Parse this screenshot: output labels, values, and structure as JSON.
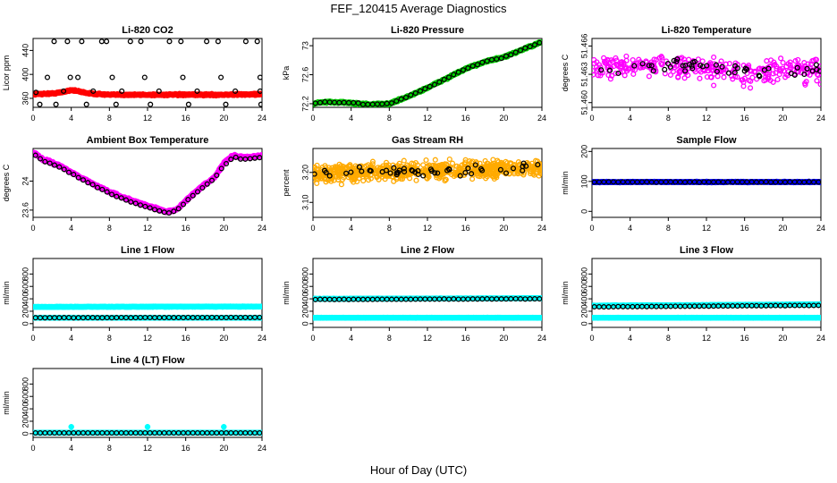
{
  "figure": {
    "title": "FEF_120415  Average Diagnostics",
    "xlabel": "Hour of Day (UTC)"
  },
  "chart_data": [
    {
      "type": "scatter",
      "title": "Li-820 CO2",
      "ylabel": "Licor ppm",
      "xlim": [
        0,
        24
      ],
      "ylim": [
        345,
        460
      ],
      "xticks": [
        0,
        4,
        8,
        12,
        16,
        20,
        24
      ],
      "yticks": [
        360,
        400,
        440
      ],
      "series": [
        {
          "color": "#ff0000",
          "marker": "filled",
          "band": [
            [
              0,
              367
            ],
            [
              2,
              368
            ],
            [
              3,
              370
            ],
            [
              4,
              374
            ],
            [
              5,
              371
            ],
            [
              6,
              368
            ],
            [
              8,
              366
            ],
            [
              12,
              366
            ],
            [
              16,
              366
            ],
            [
              20,
              366
            ],
            [
              24,
              367
            ]
          ],
          "spread": 2
        },
        {
          "color": "#000000",
          "marker": "open",
          "points": [
            [
              0.3,
              370
            ],
            [
              0.7,
              350
            ],
            [
              2.2,
              455
            ],
            [
              2.4,
              350
            ],
            [
              1.5,
              395
            ],
            [
              3.6,
              455
            ],
            [
              3.9,
              395
            ],
            [
              3.2,
              372
            ],
            [
              4.7,
              395
            ],
            [
              5.1,
              455
            ],
            [
              5.6,
              350
            ],
            [
              6.3,
              372
            ],
            [
              7.2,
              455
            ],
            [
              7.7,
              455
            ],
            [
              8.3,
              395
            ],
            [
              8.7,
              350
            ],
            [
              9.3,
              372
            ],
            [
              10.2,
              455
            ],
            [
              11.3,
              455
            ],
            [
              11.7,
              395
            ],
            [
              12.3,
              350
            ],
            [
              13.2,
              372
            ],
            [
              14.3,
              455
            ],
            [
              15.5,
              455
            ],
            [
              15.7,
              395
            ],
            [
              16.3,
              350
            ],
            [
              17.2,
              372
            ],
            [
              18.2,
              455
            ],
            [
              19.4,
              455
            ],
            [
              19.7,
              395
            ],
            [
              20.2,
              350
            ],
            [
              21.2,
              372
            ],
            [
              22.3,
              455
            ],
            [
              23.5,
              455
            ],
            [
              23.8,
              395
            ],
            [
              23.9,
              350
            ],
            [
              23.8,
              372
            ]
          ]
        }
      ]
    },
    {
      "type": "scatter",
      "title": "Li-820 Pressure",
      "ylabel": "kPa",
      "xlim": [
        0,
        24
      ],
      "ylim": [
        72.15,
        73.1
      ],
      "xticks": [
        0,
        4,
        8,
        12,
        16,
        20,
        24
      ],
      "yticks": [
        72.2,
        72.6,
        73.0
      ],
      "series": [
        {
          "color": "#00cc00",
          "marker": "filled",
          "band": [
            [
              0,
              72.2
            ],
            [
              1,
              72.22
            ],
            [
              3,
              72.22
            ],
            [
              6,
              72.19
            ],
            [
              8,
              72.2
            ],
            [
              10,
              72.3
            ],
            [
              12,
              72.42
            ],
            [
              14,
              72.55
            ],
            [
              16,
              72.68
            ],
            [
              18,
              72.78
            ],
            [
              20,
              72.84
            ],
            [
              22,
              72.95
            ],
            [
              24,
              73.05
            ]
          ],
          "spread": 0.02
        },
        {
          "color": "#000000",
          "marker": "open",
          "curve": [
            [
              0,
              72.2
            ],
            [
              1,
              72.22
            ],
            [
              3,
              72.22
            ],
            [
              6,
              72.19
            ],
            [
              8,
              72.2
            ],
            [
              10,
              72.3
            ],
            [
              12,
              72.42
            ],
            [
              14,
              72.55
            ],
            [
              16,
              72.68
            ],
            [
              18,
              72.78
            ],
            [
              20,
              72.84
            ],
            [
              22,
              72.95
            ],
            [
              24,
              73.05
            ]
          ],
          "n": 48,
          "jitter": 0.012
        }
      ]
    },
    {
      "type": "scatter",
      "title": "Li-820 Temperature",
      "ylabel": "degrees C",
      "xlim": [
        0,
        24
      ],
      "ylim": [
        51.4595,
        51.4668
      ],
      "xticks": [
        0,
        4,
        8,
        12,
        16,
        20,
        24
      ],
      "yticks": [
        51.46,
        51.463,
        51.466
      ],
      "yticklabels": [
        "51.460",
        "51.463",
        "51.466"
      ],
      "series": [
        {
          "color": "#ff00ff",
          "marker": "open",
          "noise": {
            "n": 330,
            "center": 51.4635,
            "spread": 0.0022,
            "trend": [
              [
                0,
                0
              ],
              [
                6,
                0.0006
              ],
              [
                12,
                0.0002
              ],
              [
                18,
                -0.0003
              ],
              [
                24,
                0
              ]
            ]
          }
        },
        {
          "color": "#000000",
          "marker": "open",
          "noise": {
            "n": 48,
            "center": 51.4635,
            "spread": 0.0011,
            "trend": [
              [
                0,
                0
              ],
              [
                6,
                0.0006
              ],
              [
                12,
                0.0002
              ],
              [
                18,
                -0.0003
              ],
              [
                24,
                0
              ]
            ]
          }
        }
      ]
    },
    {
      "type": "scatter",
      "title": "Ambient Box Temperature",
      "ylabel": "degrees C",
      "xlim": [
        0,
        24
      ],
      "ylim": [
        23.5,
        24.45
      ],
      "xticks": [
        0,
        4,
        8,
        12,
        16,
        20,
        24
      ],
      "yticks": [
        23.6,
        24.0
      ],
      "series": [
        {
          "color": "#ff00ff",
          "marker": "filled",
          "band": [
            [
              0,
              24.4
            ],
            [
              1,
              24.3
            ],
            [
              3,
              24.2
            ],
            [
              5,
              24.05
            ],
            [
              8,
              23.85
            ],
            [
              11,
              23.7
            ],
            [
              14,
              23.58
            ],
            [
              15,
              23.6
            ],
            [
              17,
              23.85
            ],
            [
              19,
              24.05
            ],
            [
              20,
              24.25
            ],
            [
              21,
              24.35
            ],
            [
              22,
              24.33
            ],
            [
              24,
              24.35
            ]
          ],
          "spread": 0.025
        },
        {
          "color": "#000000",
          "marker": "open",
          "curve": [
            [
              0,
              24.38
            ],
            [
              1,
              24.28
            ],
            [
              3,
              24.18
            ],
            [
              5,
              24.03
            ],
            [
              8,
              23.83
            ],
            [
              11,
              23.68
            ],
            [
              14,
              23.56
            ],
            [
              15,
              23.59
            ],
            [
              17,
              23.83
            ],
            [
              19,
              24.03
            ],
            [
              20,
              24.22
            ],
            [
              21,
              24.33
            ],
            [
              22,
              24.3
            ],
            [
              24,
              24.33
            ]
          ],
          "n": 48,
          "jitter": 0.01
        }
      ]
    },
    {
      "type": "scatter",
      "title": "Gas Stream RH",
      "ylabel": "percent",
      "xlim": [
        0,
        24
      ],
      "ylim": [
        3.05,
        3.28
      ],
      "xticks": [
        0,
        4,
        8,
        12,
        16,
        20,
        24
      ],
      "yticks": [
        3.1,
        3.2
      ],
      "yticklabels": [
        "3.10",
        "3.20"
      ],
      "series": [
        {
          "color": "#ffaa00",
          "marker": "open",
          "noise": {
            "n": 700,
            "center": 3.205,
            "spread": 0.045,
            "trend": [
              [
                0,
                -0.01
              ],
              [
                24,
                0.01
              ]
            ]
          }
        },
        {
          "color": "#000000",
          "marker": "open",
          "noise": {
            "n": 48,
            "center": 3.205,
            "spread": 0.03,
            "trend": [
              [
                0,
                -0.01
              ],
              [
                24,
                0.01
              ]
            ]
          }
        }
      ]
    },
    {
      "type": "scatter",
      "title": "Sample Flow",
      "ylabel": "ml/min",
      "xlim": [
        0,
        24
      ],
      "ylim": [
        -20,
        210
      ],
      "xticks": [
        0,
        4,
        8,
        12,
        16,
        20,
        24
      ],
      "yticks": [
        0,
        100,
        200
      ],
      "series": [
        {
          "color": "#0000ff",
          "marker": "filled",
          "band": [
            [
              0,
              98
            ],
            [
              24,
              98
            ]
          ],
          "spread": 2
        },
        {
          "color": "#000000",
          "marker": "open",
          "curve": [
            [
              0,
              98
            ],
            [
              24,
              98
            ]
          ],
          "n": 48,
          "jitter": 1
        }
      ]
    },
    {
      "type": "scatter",
      "title": "Line 1 Flow",
      "ylabel": "ml/min",
      "xlim": [
        0,
        24
      ],
      "ylim": [
        -60,
        1050
      ],
      "xticks": [
        0,
        4,
        8,
        12,
        16,
        20,
        24
      ],
      "yticks": [
        0,
        200,
        400,
        600,
        800
      ],
      "series": [
        {
          "color": "#00ffff",
          "marker": "filled",
          "band": [
            [
              0,
              270
            ],
            [
              24,
              275
            ]
          ],
          "spread": 6
        },
        {
          "color": "#00ffff",
          "marker": "filled",
          "band": [
            [
              0,
              95
            ],
            [
              24,
              95
            ]
          ],
          "spread": 3
        },
        {
          "color": "#000000",
          "marker": "open",
          "curve": [
            [
              0,
              95
            ],
            [
              24,
              100
            ]
          ],
          "n": 48,
          "jitter": 2
        }
      ]
    },
    {
      "type": "scatter",
      "title": "Line 2 Flow",
      "ylabel": "ml/min",
      "xlim": [
        0,
        24
      ],
      "ylim": [
        -60,
        1050
      ],
      "xticks": [
        0,
        4,
        8,
        12,
        16,
        20,
        24
      ],
      "yticks": [
        0,
        200,
        400,
        600,
        800
      ],
      "series": [
        {
          "color": "#00ffff",
          "marker": "filled",
          "band": [
            [
              0,
              400
            ],
            [
              24,
              410
            ]
          ],
          "spread": 6
        },
        {
          "color": "#00ffff",
          "marker": "filled",
          "band": [
            [
              0,
              95
            ],
            [
              24,
              95
            ]
          ],
          "spread": 3
        },
        {
          "color": "#000000",
          "marker": "open",
          "curve": [
            [
              0,
              390
            ],
            [
              24,
              400
            ]
          ],
          "n": 48,
          "jitter": 4
        }
      ]
    },
    {
      "type": "scatter",
      "title": "Line 3 Flow",
      "ylabel": "ml/min",
      "xlim": [
        0,
        24
      ],
      "ylim": [
        -60,
        1050
      ],
      "xticks": [
        0,
        4,
        8,
        12,
        16,
        20,
        24
      ],
      "yticks": [
        0,
        200,
        400,
        600,
        800
      ],
      "series": [
        {
          "color": "#00ffff",
          "marker": "filled",
          "band": [
            [
              0,
              290
            ],
            [
              24,
              310
            ]
          ],
          "spread": 6
        },
        {
          "color": "#00ffff",
          "marker": "filled",
          "band": [
            [
              0,
              95
            ],
            [
              24,
              95
            ]
          ],
          "spread": 3
        },
        {
          "color": "#000000",
          "marker": "open",
          "curve": [
            [
              0,
              270
            ],
            [
              24,
              295
            ]
          ],
          "n": 48,
          "jitter": 4
        }
      ]
    },
    {
      "type": "scatter",
      "title": "Line 4 (LT) Flow",
      "ylabel": "ml/min",
      "xlim": [
        0,
        24
      ],
      "ylim": [
        -60,
        1050
      ],
      "xticks": [
        0,
        4,
        8,
        12,
        16,
        20,
        24
      ],
      "yticks": [
        0,
        200,
        400,
        600,
        800
      ],
      "series": [
        {
          "color": "#00ffff",
          "marker": "filled",
          "band": [
            [
              0,
              15
            ],
            [
              24,
              15
            ]
          ],
          "spread": 3,
          "spikes": [
            [
              4,
              110
            ],
            [
              12,
              110
            ],
            [
              20,
              110
            ]
          ]
        },
        {
          "color": "#000000",
          "marker": "open",
          "curve": [
            [
              0,
              12
            ],
            [
              24,
              12
            ]
          ],
          "n": 48,
          "jitter": 1
        }
      ]
    }
  ]
}
